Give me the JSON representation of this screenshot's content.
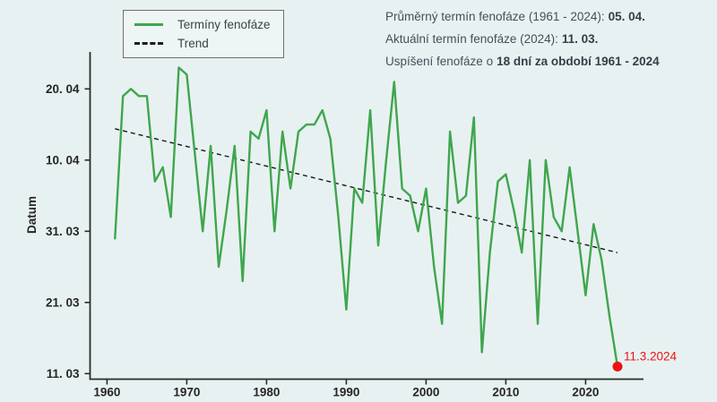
{
  "stats": {
    "line1": {
      "text": "Průměrný termín fenofáze (1961 - 2024):",
      "value": "05. 04."
    },
    "line2": {
      "text": "Aktuální termín fenofáze (2024):",
      "value": "11. 03."
    },
    "line3": {
      "text": "Uspíšení fenofáze o",
      "value": "18 dní za období 1961 - 2024"
    }
  },
  "legend": {
    "items": [
      {
        "label": "Termíny fenofáze",
        "style": "solid-green"
      },
      {
        "label": "Trend",
        "style": "dashed-black"
      }
    ]
  },
  "colors": {
    "background": "#e8f1f1",
    "series_green": "#3fa64e",
    "trend_black": "#161616",
    "highlight_red": "#ee1111",
    "axis": "#2b2b2b",
    "tick_text": "#262626"
  },
  "chart_data": {
    "type": "line",
    "value_unit": "day-of-year (non-leap: 70 = 11.03, 80 = 21.03, 90 = 31.03, 100 = 10.04, 110 = 20.04)",
    "legend_position": "top-left",
    "grid": false,
    "x": [
      1961,
      1962,
      1963,
      1964,
      1965,
      1966,
      1967,
      1968,
      1969,
      1970,
      1971,
      1972,
      1973,
      1974,
      1975,
      1976,
      1977,
      1978,
      1979,
      1980,
      1981,
      1982,
      1983,
      1984,
      1985,
      1986,
      1987,
      1988,
      1989,
      1990,
      1991,
      1992,
      1993,
      1994,
      1995,
      1996,
      1997,
      1998,
      1999,
      2000,
      2001,
      2002,
      2003,
      2004,
      2005,
      2006,
      2007,
      2008,
      2009,
      2010,
      2011,
      2012,
      2013,
      2014,
      2015,
      2016,
      2017,
      2018,
      2019,
      2020,
      2021,
      2022,
      2023,
      2024
    ],
    "series": [
      {
        "name": "Termíny fenofáze",
        "values": [
          89,
          109,
          110,
          109,
          109,
          97,
          99,
          92,
          113,
          112,
          101,
          90,
          102,
          85,
          93,
          102,
          83,
          104,
          103,
          107,
          90,
          104,
          96,
          104,
          105,
          105,
          107,
          103,
          92,
          79,
          96,
          94,
          107,
          88,
          100,
          111,
          96,
          95,
          90,
          96,
          85,
          77,
          104,
          94,
          95,
          106,
          73,
          87,
          97,
          98,
          93,
          87,
          100,
          77,
          100,
          92,
          90,
          99,
          90,
          81,
          91,
          86,
          78,
          71
        ]
      }
    ],
    "trend": {
      "name": "Trend",
      "start": {
        "year": 1961,
        "value": 104.4
      },
      "end": {
        "year": 2024,
        "value": 87.0
      }
    },
    "highlight": {
      "year": 2024,
      "value": 71,
      "label": "11.3.2024"
    },
    "x_axis": {
      "ticks": [
        1960,
        1970,
        1980,
        1990,
        2000,
        2010,
        2020
      ],
      "range": [
        1960,
        2027
      ]
    },
    "y_axis": {
      "label": "Datum",
      "ticks": [
        {
          "value": 110,
          "label": "20. 04"
        },
        {
          "value": 100,
          "label": "10. 04"
        },
        {
          "value": 90,
          "label": "31. 03"
        },
        {
          "value": 80,
          "label": "21. 03"
        },
        {
          "value": 70,
          "label": "11. 03"
        }
      ],
      "range_values": [
        69,
        115
      ]
    }
  }
}
